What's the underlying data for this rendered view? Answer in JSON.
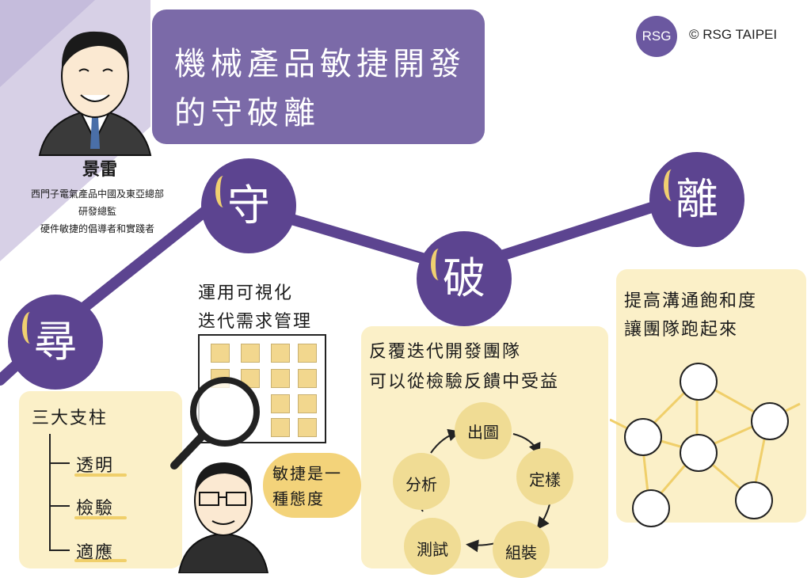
{
  "header": {
    "title_line1": "機械產品敏捷開發",
    "title_line2": "的守破離"
  },
  "brand": {
    "logo_text": "RSG",
    "copyright": "© RSG TAIPEI",
    "accent_color": "#6b58a0"
  },
  "speaker": {
    "name": "景雷",
    "line1": "西門子電氣產品中國及東亞總部",
    "line2": "研發總監",
    "line3": "硬件敏捷的倡導者和實踐者"
  },
  "stages": {
    "xun": "尋",
    "shou": "守",
    "po": "破",
    "li": "離"
  },
  "pillars": {
    "title": "三大支柱",
    "items": [
      "透明",
      "檢驗",
      "適應"
    ]
  },
  "shou_panel": {
    "line1": "運用可視化",
    "line2": "迭代需求管理",
    "bubble_line1": "敏捷是一",
    "bubble_line2": "種態度"
  },
  "po_panel": {
    "line1": "反覆迭代開發團隊",
    "line2": "可以從檢驗反饋中受益",
    "cycle": [
      "出圖",
      "定樣",
      "組裝",
      "測試",
      "分析"
    ]
  },
  "li_panel": {
    "line1": "提高溝通飽和度",
    "line2": "讓團隊跑起來"
  },
  "colors": {
    "node_purple": "#5c4490",
    "title_purple": "#7b6aa8",
    "panel_yellow": "#fbf0c8",
    "highlight_yellow": "#f0cf6a"
  }
}
